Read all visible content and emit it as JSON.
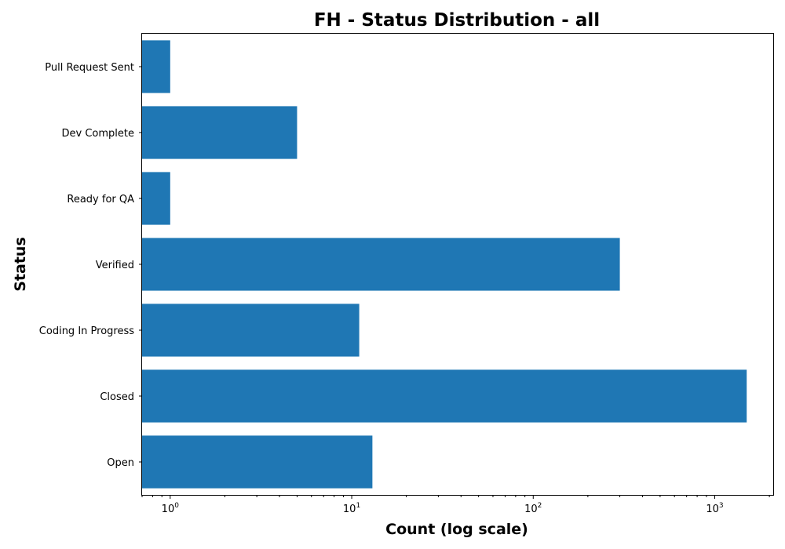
{
  "chart_data": {
    "type": "bar",
    "orientation": "horizontal",
    "title": "FH - Status Distribution - all",
    "xlabel": "Count (log scale)",
    "ylabel": "Status",
    "x_scale": "log",
    "xlim": [
      0.7,
      2100
    ],
    "x_ticks": [
      {
        "value": 1,
        "base": "10",
        "exp": "0"
      },
      {
        "value": 10,
        "base": "10",
        "exp": "1"
      },
      {
        "value": 100,
        "base": "10",
        "exp": "2"
      },
      {
        "value": 1000,
        "base": "10",
        "exp": "3"
      }
    ],
    "categories": [
      "Open",
      "Closed",
      "Coding In Progress",
      "Verified",
      "Ready for QA",
      "Dev Complete",
      "Pull Request Sent"
    ],
    "values": [
      13,
      1500,
      11,
      300,
      1,
      5,
      1
    ],
    "bar_color": "#1f77b4",
    "grid": false,
    "legend": "none"
  }
}
